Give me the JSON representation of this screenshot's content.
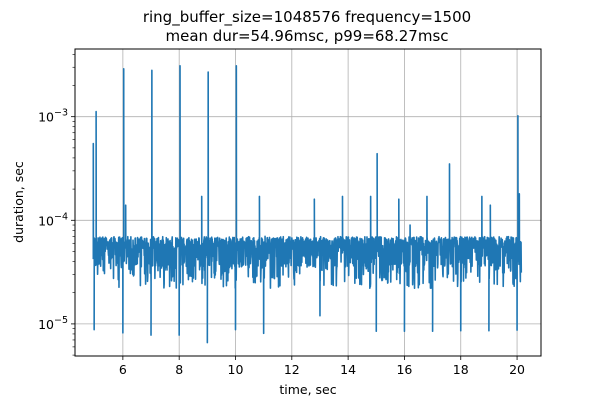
{
  "chart_data": {
    "type": "line",
    "title_line1": "ring_buffer_size=1048576 frequency=1500",
    "title_line2": "mean dur=54.96msc, p99=68.27msc",
    "xlabel": "time, sec",
    "ylabel": "duration, sec",
    "xlim": [
      4.3,
      20.85
    ],
    "ylog": true,
    "ylim": [
      4.9e-06,
      0.0045
    ],
    "grid": true,
    "line_color": "#1f77b4",
    "x_ticks": [
      {
        "value": 6,
        "label": "6"
      },
      {
        "value": 8,
        "label": "8"
      },
      {
        "value": 10,
        "label": "10"
      },
      {
        "value": 12,
        "label": "12"
      },
      {
        "value": 14,
        "label": "14"
      },
      {
        "value": 16,
        "label": "16"
      },
      {
        "value": 18,
        "label": "18"
      },
      {
        "value": 20,
        "label": "20"
      }
    ],
    "y_ticks": [
      {
        "value": 1e-05,
        "base": "10",
        "exp": "−5"
      },
      {
        "value": 0.0001,
        "base": "10",
        "exp": "−4"
      },
      {
        "value": 0.001,
        "base": "10",
        "exp": "−3"
      }
    ],
    "series": [
      {
        "name": "duration",
        "x_start": 4.95,
        "x_end": 20.15,
        "baseline_typical": 5.8e-05,
        "spikes": [
          {
            "x": 4.95,
            "y": 0.00055
          },
          {
            "x": 5.05,
            "y": 0.00112
          },
          {
            "x": 6.03,
            "y": 0.0029
          },
          {
            "x": 6.1,
            "y": 0.00014
          },
          {
            "x": 7.03,
            "y": 0.0028
          },
          {
            "x": 8.03,
            "y": 0.0031
          },
          {
            "x": 8.8,
            "y": 0.00017
          },
          {
            "x": 9.03,
            "y": 0.0027
          },
          {
            "x": 10.03,
            "y": 0.0031
          },
          {
            "x": 10.85,
            "y": 0.00017
          },
          {
            "x": 11.05,
            "y": 7e-05
          },
          {
            "x": 12.8,
            "y": 0.00016
          },
          {
            "x": 13.8,
            "y": 0.00017
          },
          {
            "x": 14.8,
            "y": 0.00017
          },
          {
            "x": 15.03,
            "y": 0.00044
          },
          {
            "x": 15.8,
            "y": 0.00016
          },
          {
            "x": 16.2,
            "y": 9e-05
          },
          {
            "x": 16.8,
            "y": 0.00017
          },
          {
            "x": 17.6,
            "y": 0.00035
          },
          {
            "x": 18.75,
            "y": 0.00017
          },
          {
            "x": 19.05,
            "y": 0.00014
          },
          {
            "x": 20.03,
            "y": 0.00102
          },
          {
            "x": 20.08,
            "y": 0.00018
          }
        ],
        "dips": [
          {
            "x": 4.98,
            "y": 8.8e-06
          },
          {
            "x": 6.0,
            "y": 8.2e-06
          },
          {
            "x": 7.0,
            "y": 7.8e-06
          },
          {
            "x": 8.0,
            "y": 7.8e-06
          },
          {
            "x": 9.0,
            "y": 6.6e-06
          },
          {
            "x": 10.0,
            "y": 8.8e-06
          },
          {
            "x": 11.0,
            "y": 8.1e-06
          },
          {
            "x": 13.0,
            "y": 1.2e-05
          },
          {
            "x": 15.0,
            "y": 8.5e-06
          },
          {
            "x": 16.0,
            "y": 8.5e-06
          },
          {
            "x": 17.0,
            "y": 8.5e-06
          },
          {
            "x": 18.0,
            "y": 8.6e-06
          },
          {
            "x": 19.0,
            "y": 8.6e-06
          },
          {
            "x": 20.0,
            "y": 8.7e-06
          }
        ]
      }
    ]
  }
}
